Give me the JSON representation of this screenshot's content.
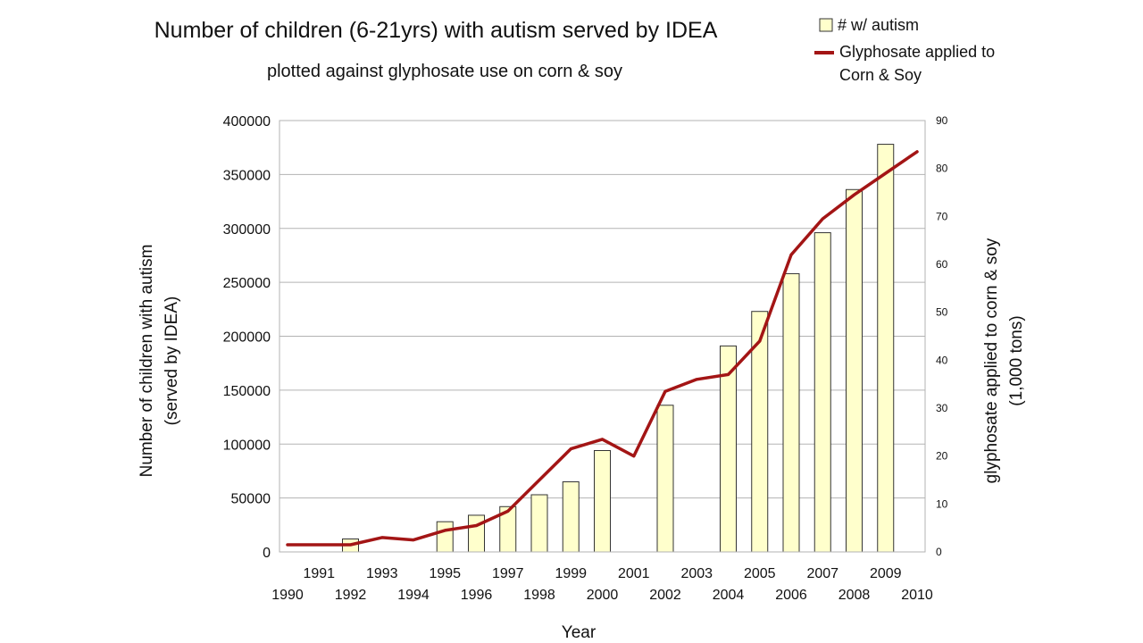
{
  "chart_data": {
    "type": "bar",
    "title": "Number of children (6-21yrs) with autism served by IDEA",
    "subtitle": "plotted against glyphosate use on corn & soy",
    "xlabel": "Year",
    "ylabel_left_line1": "Number of children with autism",
    "ylabel_left_line2": "(served by IDEA)",
    "ylabel_right_line1": "glyphosate applied to corn & soy",
    "ylabel_right_line2": "(1,000 tons)",
    "x_min": 1990,
    "x_max": 2010,
    "ylim_left": [
      0,
      400000
    ],
    "ylim_right": [
      0,
      90
    ],
    "left_ticks": [
      "0",
      "50000",
      "100000",
      "150000",
      "200000",
      "250000",
      "300000",
      "350000",
      "400000"
    ],
    "right_ticks": [
      "0",
      "10",
      "20",
      "30",
      "40",
      "50",
      "60",
      "70",
      "80",
      "90"
    ],
    "x_ticks_lower": [
      "1990",
      "1992",
      "1994",
      "1996",
      "1998",
      "2000",
      "2002",
      "2004",
      "2006",
      "2008",
      "2010"
    ],
    "x_ticks_upper": [
      "1991",
      "1993",
      "1995",
      "1997",
      "1999",
      "2001",
      "2003",
      "2005",
      "2007",
      "2009"
    ],
    "grid": true,
    "legend_position": "top-right",
    "series": [
      {
        "name": "# w/ autism",
        "kind": "bar",
        "axis": "left",
        "color": "#FFFFCC",
        "x": [
          1992,
          1995,
          1996,
          1997,
          1998,
          1999,
          2000,
          2002,
          2004,
          2005,
          2006,
          2007,
          2008,
          2009
        ],
        "values": [
          12000,
          28000,
          34000,
          42000,
          53000,
          65000,
          94000,
          136000,
          191000,
          223000,
          258000,
          296000,
          336000,
          378000
        ]
      },
      {
        "name": "Glyphosate applied to",
        "name_line2": "Corn & Soy",
        "kind": "line",
        "axis": "right",
        "color": "#A31515",
        "x": [
          1990,
          1991,
          1992,
          1993,
          1994,
          1995,
          1996,
          1997,
          1998,
          1999,
          2000,
          2001,
          2002,
          2003,
          2004,
          2005,
          2006,
          2007,
          2008,
          2009,
          2010
        ],
        "values": [
          1.5,
          1.5,
          1.5,
          3,
          2.5,
          4.5,
          5.5,
          8.5,
          15,
          21.5,
          23.5,
          20,
          33.5,
          36,
          37,
          44,
          62,
          69.5,
          74.5,
          79,
          83.5
        ]
      }
    ]
  }
}
